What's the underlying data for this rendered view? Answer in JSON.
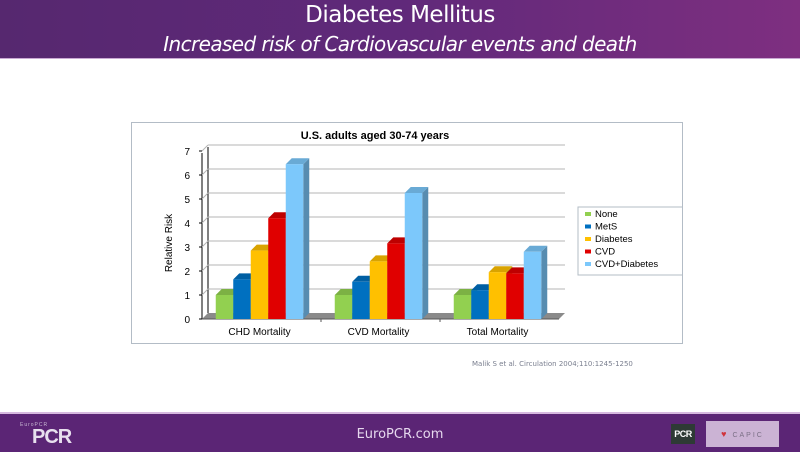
{
  "header": {
    "title": "Diabetes Mellitus",
    "subtitle": "Increased risk of Cardiovascular events and death"
  },
  "citation": "Malik S et al. Circulation 2004;110:1245-1250",
  "footer": {
    "site": "EuroPCR.com",
    "logo_left_small": "EuroPCR",
    "logo_left_big": "PCR",
    "logo_right_1": "PCR",
    "logo_right_2": "CAPIC"
  },
  "chart_data": {
    "type": "bar",
    "title": "U.S. adults aged 30-74 years",
    "xlabel": "",
    "ylabel": "Relative Risk",
    "ylim": [
      0,
      7
    ],
    "yticks": [
      0,
      1,
      2,
      3,
      4,
      5,
      6,
      7
    ],
    "grid": true,
    "legend_position": "right",
    "categories": [
      "CHD Mortality",
      "CVD Mortality",
      "Total Mortality"
    ],
    "series": [
      {
        "name": "None",
        "color": "#92d050",
        "values": [
          1.0,
          1.0,
          1.0
        ]
      },
      {
        "name": "MetS",
        "color": "#0070c0",
        "values": [
          1.65,
          1.55,
          1.2
        ]
      },
      {
        "name": "Diabetes",
        "color": "#ffc000",
        "values": [
          2.85,
          2.4,
          1.95
        ]
      },
      {
        "name": "CVD",
        "color": "#e00000",
        "values": [
          4.2,
          3.15,
          1.9
        ]
      },
      {
        "name": "CVD+Diabetes",
        "color": "#7cc8fb",
        "values": [
          6.45,
          5.25,
          2.8
        ]
      }
    ]
  }
}
